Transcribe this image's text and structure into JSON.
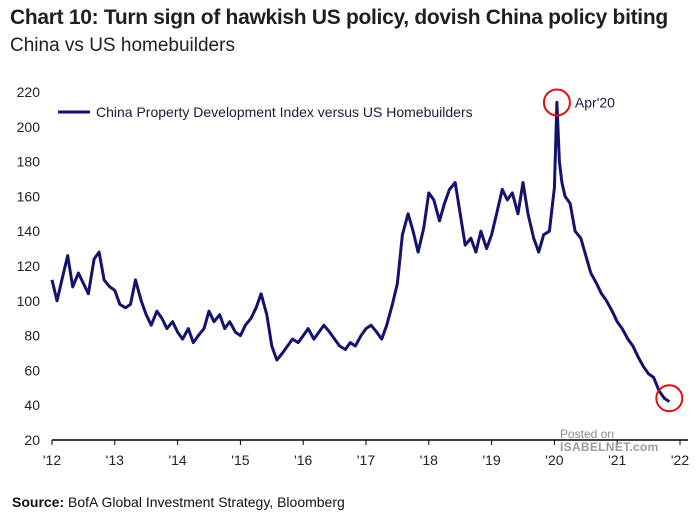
{
  "title": "Chart 10: Turn sign of hawkish US policy, dovish China policy biting",
  "subtitle": "China vs US homebuilders",
  "source_label": "Source:",
  "source_text": "BofA Global Investment Strategy, Bloomberg",
  "watermark": {
    "line1": "Posted on",
    "line2": "ISABELNET.com"
  },
  "colors": {
    "line": "#13136b",
    "circle": "#e01010",
    "axis": "#000000"
  },
  "chart_data": {
    "type": "line",
    "title": "Chart 10: Turn sign of hawkish US policy, dovish China policy biting",
    "subtitle": "China vs US homebuilders",
    "xlabel": "",
    "ylabel": "",
    "xlim": [
      2012,
      2022
    ],
    "ylim": [
      20,
      220
    ],
    "yticks": [
      20,
      40,
      60,
      80,
      100,
      120,
      140,
      160,
      180,
      200,
      220
    ],
    "xticks": [
      {
        "label": "'12",
        "x": 2012
      },
      {
        "label": "'13",
        "x": 2013
      },
      {
        "label": "'14",
        "x": 2014
      },
      {
        "label": "'15",
        "x": 2015
      },
      {
        "label": "'16",
        "x": 2016
      },
      {
        "label": "'17",
        "x": 2017
      },
      {
        "label": "'18",
        "x": 2018
      },
      {
        "label": "'19",
        "x": 2019
      },
      {
        "label": "'20",
        "x": 2020
      },
      {
        "label": "'21",
        "x": 2021
      },
      {
        "label": "'22",
        "x": 2022
      }
    ],
    "legend": "top-left",
    "series": [
      {
        "name": "China Property Development Index versus US Homebuilders",
        "points": [
          [
            2012.0,
            112
          ],
          [
            2012.08,
            100
          ],
          [
            2012.17,
            114
          ],
          [
            2012.25,
            126
          ],
          [
            2012.33,
            108
          ],
          [
            2012.42,
            116
          ],
          [
            2012.5,
            110
          ],
          [
            2012.58,
            104
          ],
          [
            2012.67,
            124
          ],
          [
            2012.75,
            128
          ],
          [
            2012.83,
            112
          ],
          [
            2012.92,
            108
          ],
          [
            2013.0,
            106
          ],
          [
            2013.08,
            98
          ],
          [
            2013.17,
            96
          ],
          [
            2013.25,
            98
          ],
          [
            2013.33,
            112
          ],
          [
            2013.42,
            100
          ],
          [
            2013.5,
            92
          ],
          [
            2013.58,
            86
          ],
          [
            2013.67,
            94
          ],
          [
            2013.75,
            90
          ],
          [
            2013.83,
            84
          ],
          [
            2013.92,
            88
          ],
          [
            2014.0,
            82
          ],
          [
            2014.08,
            78
          ],
          [
            2014.17,
            84
          ],
          [
            2014.25,
            76
          ],
          [
            2014.33,
            80
          ],
          [
            2014.42,
            84
          ],
          [
            2014.5,
            94
          ],
          [
            2014.58,
            88
          ],
          [
            2014.67,
            92
          ],
          [
            2014.75,
            84
          ],
          [
            2014.83,
            88
          ],
          [
            2014.92,
            82
          ],
          [
            2015.0,
            80
          ],
          [
            2015.08,
            86
          ],
          [
            2015.17,
            90
          ],
          [
            2015.25,
            96
          ],
          [
            2015.33,
            104
          ],
          [
            2015.42,
            92
          ],
          [
            2015.5,
            74
          ],
          [
            2015.58,
            66
          ],
          [
            2015.67,
            70
          ],
          [
            2015.75,
            74
          ],
          [
            2015.83,
            78
          ],
          [
            2015.92,
            76
          ],
          [
            2016.0,
            80
          ],
          [
            2016.08,
            84
          ],
          [
            2016.17,
            78
          ],
          [
            2016.25,
            82
          ],
          [
            2016.33,
            86
          ],
          [
            2016.42,
            82
          ],
          [
            2016.5,
            78
          ],
          [
            2016.58,
            74
          ],
          [
            2016.67,
            72
          ],
          [
            2016.75,
            76
          ],
          [
            2016.83,
            74
          ],
          [
            2016.92,
            80
          ],
          [
            2017.0,
            84
          ],
          [
            2017.08,
            86
          ],
          [
            2017.17,
            82
          ],
          [
            2017.25,
            78
          ],
          [
            2017.33,
            86
          ],
          [
            2017.42,
            98
          ],
          [
            2017.5,
            110
          ],
          [
            2017.58,
            138
          ],
          [
            2017.67,
            150
          ],
          [
            2017.75,
            140
          ],
          [
            2017.83,
            128
          ],
          [
            2017.92,
            142
          ],
          [
            2018.0,
            162
          ],
          [
            2018.08,
            158
          ],
          [
            2018.17,
            146
          ],
          [
            2018.25,
            156
          ],
          [
            2018.33,
            164
          ],
          [
            2018.42,
            168
          ],
          [
            2018.5,
            150
          ],
          [
            2018.58,
            132
          ],
          [
            2018.67,
            136
          ],
          [
            2018.75,
            128
          ],
          [
            2018.83,
            140
          ],
          [
            2018.92,
            130
          ],
          [
            2019.0,
            138
          ],
          [
            2019.08,
            150
          ],
          [
            2019.17,
            164
          ],
          [
            2019.25,
            158
          ],
          [
            2019.33,
            162
          ],
          [
            2019.42,
            150
          ],
          [
            2019.5,
            168
          ],
          [
            2019.58,
            150
          ],
          [
            2019.67,
            136
          ],
          [
            2019.75,
            128
          ],
          [
            2019.83,
            138
          ],
          [
            2019.92,
            140
          ],
          [
            2020.0,
            165
          ],
          [
            2020.04,
            214
          ],
          [
            2020.08,
            180
          ],
          [
            2020.12,
            168
          ],
          [
            2020.17,
            160
          ],
          [
            2020.25,
            156
          ],
          [
            2020.33,
            140
          ],
          [
            2020.42,
            136
          ],
          [
            2020.5,
            126
          ],
          [
            2020.58,
            116
          ],
          [
            2020.67,
            110
          ],
          [
            2020.75,
            104
          ],
          [
            2020.83,
            100
          ],
          [
            2020.92,
            94
          ],
          [
            2021.0,
            88
          ],
          [
            2021.08,
            84
          ],
          [
            2021.17,
            78
          ],
          [
            2021.25,
            74
          ],
          [
            2021.33,
            68
          ],
          [
            2021.42,
            62
          ],
          [
            2021.5,
            58
          ],
          [
            2021.58,
            56
          ],
          [
            2021.67,
            48
          ],
          [
            2021.75,
            44
          ],
          [
            2021.83,
            42
          ]
        ]
      }
    ],
    "annotations": [
      {
        "text": "Apr'20",
        "x": 2020.04,
        "y": 214
      },
      {
        "text": "",
        "x": 2021.83,
        "y": 44
      }
    ]
  }
}
